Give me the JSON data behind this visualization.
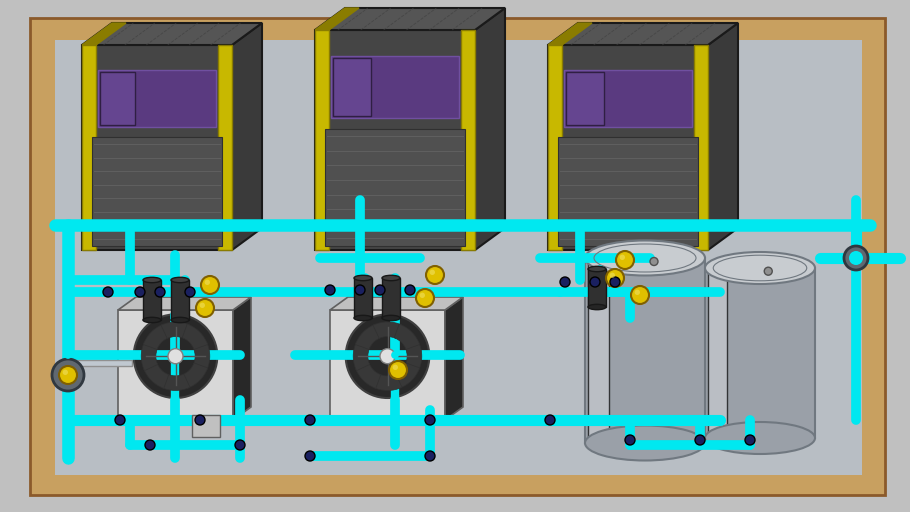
{
  "bg_color": "#c0c0c0",
  "floor_inner_color": "#b8bec4",
  "floor_border_color": "#8B5A2B",
  "floor_border_light": "#c8a060",
  "pipe_color": "#00E8F0",
  "pipe_lw": 7,
  "comp_dark": "#3a3a3a",
  "comp_mid": "#454545",
  "comp_light": "#555555",
  "comp_top": "#4a4a4a",
  "frame_yellow": "#c8b800",
  "frame_yellow_dark": "#8a7c00",
  "win_purple": "#5a3a80",
  "win_purple_light": "#7050a0",
  "grille_color": "#505050",
  "grille_line": "#606060",
  "small_unit_face": "#d8d8d8",
  "small_unit_side": "#282828",
  "small_unit_top": "#c0c0c0",
  "fan_dark": "#282828",
  "fan_mid": "#383838",
  "fan_center": "#e0e0e0",
  "receiver_body": "#9aa0a8",
  "receiver_light": "#c8ccd0",
  "receiver_dark": "#707880",
  "receiver_top": "#b0b8c0",
  "valve_yellow": "#e0c000",
  "valve_yellow_dark": "#806000",
  "filter_dark": "#303030",
  "connector_dark": "#202020",
  "pipe_fitting": "#0090a0"
}
